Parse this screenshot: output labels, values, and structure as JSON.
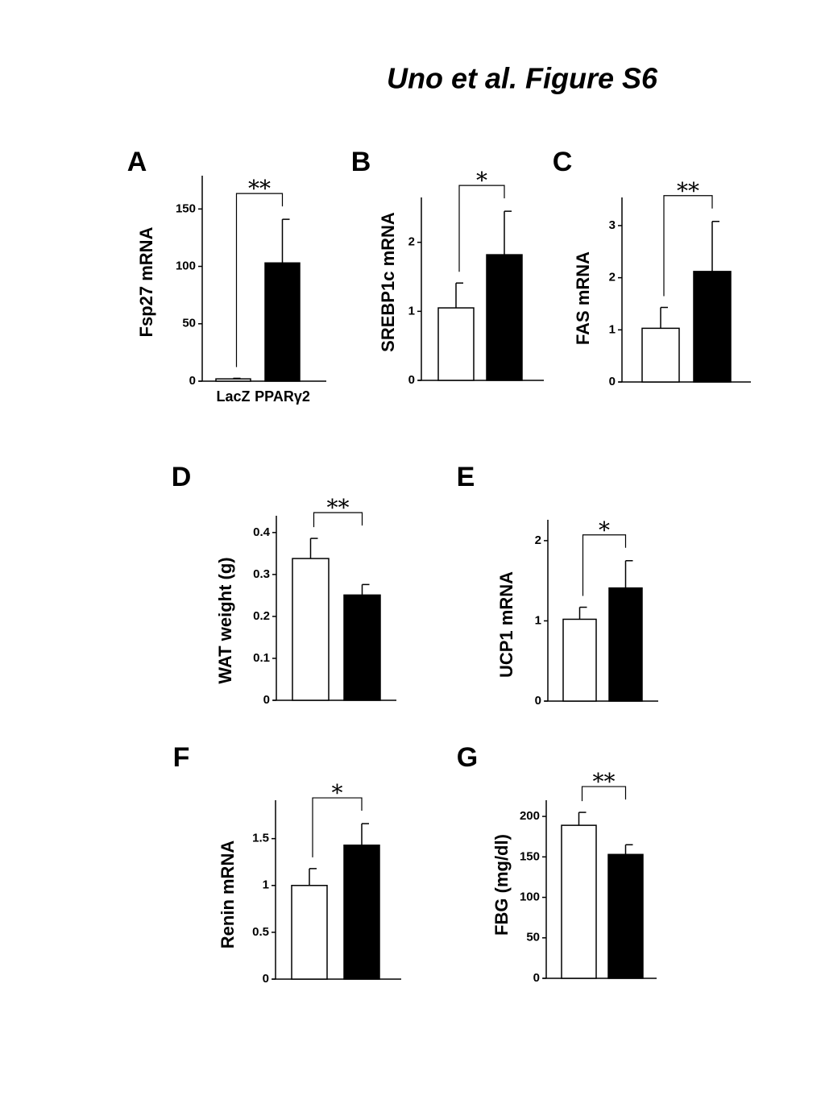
{
  "title": "Uno et al. Figure S6",
  "chart_data": [
    {
      "type": "bar",
      "label": "A",
      "ylabel": "Fsp27 mRNA",
      "categories": [
        "LacZ",
        "PPARγ2"
      ],
      "values": [
        2,
        103
      ],
      "errors": [
        0.5,
        38
      ],
      "colors": [
        "#ffffff",
        "#000000"
      ],
      "ylim": [
        0,
        179
      ],
      "yticks": [
        0,
        50,
        100,
        150
      ],
      "annotation": "**"
    },
    {
      "type": "bar",
      "label": "B",
      "ylabel": "SREBP1c mRNA",
      "categories": [
        null,
        null
      ],
      "values": [
        1.05,
        1.82
      ],
      "errors": [
        0.36,
        0.63
      ],
      "colors": [
        "#ffffff",
        "#000000"
      ],
      "ylim": [
        0,
        2.65
      ],
      "yticks": [
        0,
        1,
        2
      ],
      "annotation": "*"
    },
    {
      "type": "bar",
      "label": "C",
      "ylabel": "FAS mRNA",
      "categories": [
        null,
        null
      ],
      "values": [
        1.03,
        2.12
      ],
      "errors": [
        0.4,
        0.96
      ],
      "colors": [
        "#ffffff",
        "#000000"
      ],
      "ylim": [
        0,
        3.54
      ],
      "yticks": [
        0,
        1,
        2,
        3
      ],
      "annotation": "**"
    },
    {
      "type": "bar",
      "label": "D",
      "ylabel": "WAT weight (g)",
      "categories": [
        null,
        null
      ],
      "values": [
        0.338,
        0.251
      ],
      "errors": [
        0.048,
        0.025
      ],
      "colors": [
        "#ffffff",
        "#000000"
      ],
      "ylim": [
        0,
        0.44
      ],
      "yticks": [
        0,
        0.1,
        0.2,
        0.3,
        0.4
      ],
      "annotation": "**"
    },
    {
      "type": "bar",
      "label": "E",
      "ylabel": "UCP1 mRNA",
      "categories": [
        null,
        null
      ],
      "values": [
        1.02,
        1.41
      ],
      "errors": [
        0.15,
        0.34
      ],
      "colors": [
        "#ffffff",
        "#000000"
      ],
      "ylim": [
        0,
        2.26
      ],
      "yticks": [
        0,
        1,
        2
      ],
      "annotation": "*"
    },
    {
      "type": "bar",
      "label": "F",
      "ylabel": "Renin mRNA",
      "categories": [
        null,
        null
      ],
      "values": [
        1.0,
        1.43
      ],
      "errors": [
        0.18,
        0.23
      ],
      "colors": [
        "#ffffff",
        "#000000"
      ],
      "ylim": [
        0,
        1.91
      ],
      "yticks": [
        0,
        0.5,
        1,
        1.5
      ],
      "annotation": "*"
    },
    {
      "type": "bar",
      "label": "G",
      "ylabel": "FBG (mg/dl)",
      "categories": [
        null,
        null
      ],
      "values": [
        189,
        153
      ],
      "errors": [
        16,
        12
      ],
      "colors": [
        "#ffffff",
        "#000000"
      ],
      "ylim": [
        0,
        220
      ],
      "yticks": [
        0,
        50,
        100,
        150,
        200
      ],
      "annotation": "**"
    }
  ]
}
